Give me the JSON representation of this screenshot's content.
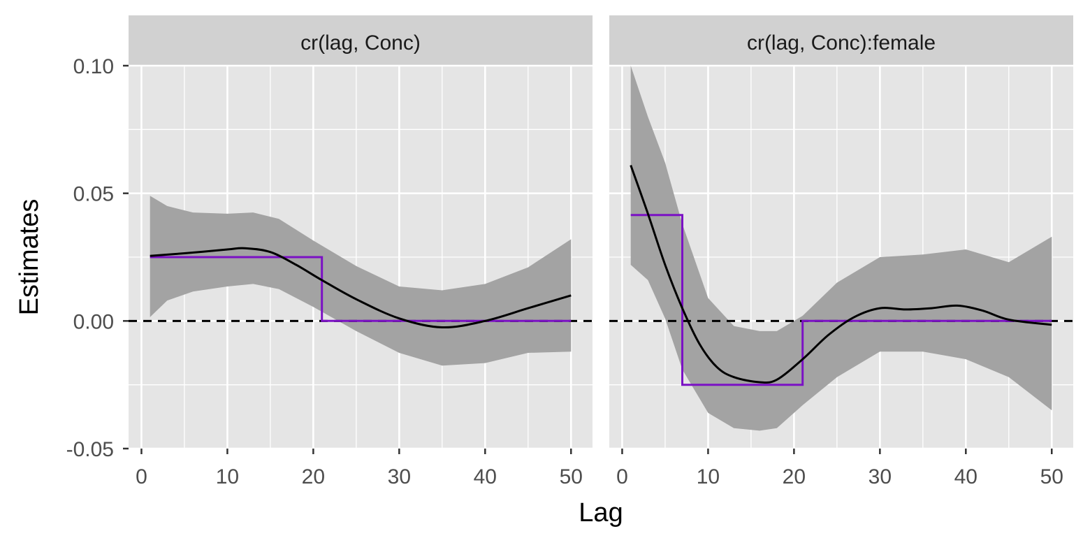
{
  "chart_data": {
    "type": "line",
    "xlabel": "Lag",
    "ylabel": "Estimates",
    "xlim": [
      -1.5,
      52.5
    ],
    "ylim": [
      -0.05,
      0.1
    ],
    "x_ticks": [
      0,
      10,
      20,
      30,
      40,
      50
    ],
    "y_ticks": [
      -0.05,
      0.0,
      0.05,
      0.1
    ],
    "y_tick_labels": [
      "-0.05",
      "0.00",
      "0.05",
      "0.10"
    ],
    "grid": true,
    "reference_line": {
      "y": 0,
      "style": "dashed",
      "color": "#000000"
    },
    "colors": {
      "panel_background": "#e5e5e5",
      "strip_background": "#d1d1d1",
      "grid": "#ffffff",
      "ribbon": "#a3a3a3",
      "estimate_line": "#000000",
      "step_line": "#7b11c4"
    },
    "panels": [
      {
        "strip": "cr(lag, Conc)",
        "estimate": {
          "x": [
            1,
            5,
            10,
            12,
            15,
            18,
            21,
            25,
            30,
            35,
            40,
            45,
            50
          ],
          "y": [
            0.0255,
            0.0265,
            0.028,
            0.0285,
            0.027,
            0.022,
            0.016,
            0.0085,
            0.001,
            -0.0025,
            0.0,
            0.005,
            0.01
          ]
        },
        "ribbon": {
          "x": [
            1,
            3,
            6,
            10,
            13,
            16,
            20,
            25,
            30,
            35,
            40,
            45,
            50
          ],
          "upper": [
            0.049,
            0.045,
            0.0425,
            0.042,
            0.0425,
            0.04,
            0.0315,
            0.0215,
            0.0135,
            0.012,
            0.0145,
            0.021,
            0.032
          ],
          "lower": [
            0.0015,
            0.008,
            0.0115,
            0.0135,
            0.0145,
            0.0125,
            0.0055,
            -0.004,
            -0.0125,
            -0.0175,
            -0.0165,
            -0.0125,
            -0.012
          ]
        },
        "step": {
          "x": [
            1,
            21,
            21,
            50
          ],
          "y": [
            0.025,
            0.025,
            0.0,
            0.0
          ]
        }
      },
      {
        "strip": "cr(lag, Conc):female",
        "estimate": {
          "x": [
            1,
            3,
            5,
            7,
            9,
            11,
            13,
            16,
            18,
            21,
            24,
            27,
            30,
            33,
            36,
            39,
            42,
            45,
            50
          ],
          "y": [
            0.061,
            0.042,
            0.022,
            0.005,
            -0.009,
            -0.018,
            -0.022,
            -0.024,
            -0.023,
            -0.015,
            -0.0055,
            0.0015,
            0.005,
            0.0045,
            0.005,
            0.006,
            0.004,
            0.0005,
            -0.0015
          ]
        },
        "ribbon": {
          "x": [
            1,
            3,
            5,
            7,
            10,
            13,
            16,
            18,
            21,
            25,
            30,
            35,
            40,
            45,
            50
          ],
          "upper": [
            0.1,
            0.08,
            0.062,
            0.038,
            0.009,
            -0.002,
            -0.004,
            -0.004,
            0.002,
            0.015,
            0.025,
            0.026,
            0.028,
            0.023,
            0.033
          ],
          "lower": [
            0.022,
            0.016,
            0.001,
            -0.019,
            -0.036,
            -0.042,
            -0.043,
            -0.042,
            -0.033,
            -0.022,
            -0.012,
            -0.012,
            -0.015,
            -0.022,
            -0.035
          ]
        },
        "step": {
          "x": [
            1,
            7,
            7,
            21,
            21,
            50
          ],
          "y": [
            0.0415,
            0.0415,
            -0.025,
            -0.025,
            0.0,
            0.0
          ]
        }
      }
    ]
  }
}
